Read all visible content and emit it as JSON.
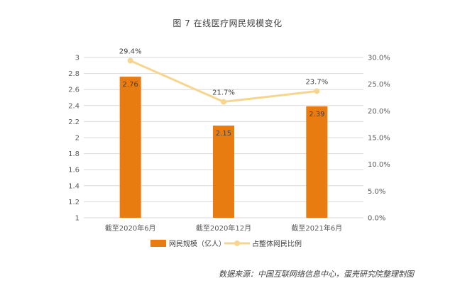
{
  "title": "图  7 在线医疗网民规模变化",
  "source": "数据来源：中国互联网络信息中心，蛋壳研究院整理制图",
  "chart_data": {
    "type": "bar",
    "categories": [
      "截至2020年6月",
      "截至2020年12月",
      "截至2021年6月"
    ],
    "series": [
      {
        "name": "网民规模（亿人）",
        "type": "bar",
        "axis": "left",
        "values": [
          2.76,
          2.15,
          2.39
        ],
        "labels": [
          "2.76",
          "2.15",
          "2.39"
        ],
        "color": "#E97C11"
      },
      {
        "name": "占整体网民比例",
        "type": "line",
        "axis": "right",
        "values": [
          29.4,
          21.7,
          23.7
        ],
        "labels": [
          "29.4%",
          "21.7%",
          "23.7%"
        ],
        "color": "#F6D68E"
      }
    ],
    "y_left": {
      "min": 1,
      "max": 3,
      "ticks": [
        "1",
        "1.2",
        "1.4",
        "1.6",
        "1.8",
        "2",
        "2.2",
        "2.4",
        "2.6",
        "2.8",
        "3"
      ]
    },
    "y_right": {
      "min": 0,
      "max": 30,
      "ticks": [
        "0.0%",
        "5.0%",
        "10.0%",
        "15.0%",
        "20.0%",
        "25.0%",
        "30.0%"
      ]
    },
    "grid": true,
    "legend": "bottom"
  }
}
